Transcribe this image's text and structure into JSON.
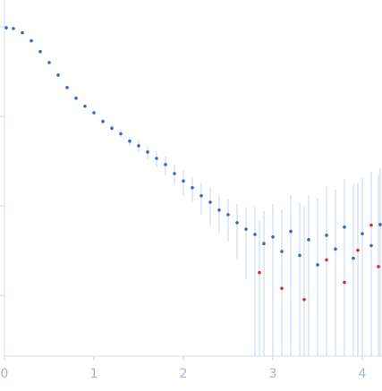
{
  "chart_data": {
    "type": "scatter",
    "log_y": true,
    "ytick_labels_shown": false,
    "error_color": "#c6d4ee",
    "xlim": [
      0,
      4.22
    ],
    "ylim": [
      0.00021,
      2
    ],
    "xticks": [
      0,
      1,
      2,
      3,
      4
    ],
    "yticks": [
      0.001,
      0.01,
      0.1,
      1
    ],
    "series": [
      {
        "color": "#3a66c4",
        "x": [
          0.02,
          0.1,
          0.2,
          0.3,
          0.4,
          0.5,
          0.6,
          0.7,
          0.8,
          0.9,
          1.0,
          1.1,
          1.2,
          1.3,
          1.4,
          1.5,
          1.6,
          1.7,
          1.8,
          1.9,
          2.0,
          2.1,
          2.2,
          2.3,
          2.4,
          2.5,
          2.6,
          2.7,
          2.8,
          2.9,
          3.0,
          3.1,
          3.2,
          3.3,
          3.4,
          3.5,
          3.6,
          3.7,
          3.8,
          3.9,
          4.0,
          4.1,
          4.2
        ],
        "values": [
          0.98,
          0.96,
          0.86,
          0.7,
          0.53,
          0.4,
          0.29,
          0.21,
          0.16,
          0.13,
          0.11,
          0.088,
          0.074,
          0.064,
          0.053,
          0.047,
          0.04,
          0.034,
          0.029,
          0.023,
          0.019,
          0.016,
          0.013,
          0.011,
          0.009,
          0.008,
          0.0065,
          0.0055,
          0.0048,
          0.0038,
          0.0045,
          0.0031,
          0.0052,
          0.0028,
          0.0042,
          0.0022,
          0.0047,
          0.0033,
          0.0058,
          0.0026,
          0.0049,
          0.0036,
          0.0062
        ],
        "errors": [
          0.05,
          0.03,
          0.02,
          0.015,
          0.01,
          0.008,
          0.006,
          0.005,
          0.005,
          0.005,
          0.006,
          0.006,
          0.006,
          0.006,
          0.006,
          0.007,
          0.007,
          0.007,
          0.007,
          0.006,
          0.006,
          0.005,
          0.005,
          0.005,
          0.004,
          0.004,
          0.004,
          0.004,
          0.005,
          0.005,
          0.006,
          0.006,
          0.008,
          0.008,
          0.009,
          0.01,
          0.012,
          0.012,
          0.014,
          0.015,
          0.016,
          0.018,
          0.02
        ]
      },
      {
        "color": "#e0282a",
        "x": [
          2.85,
          3.1,
          3.35,
          3.6,
          3.8,
          3.95,
          4.1,
          4.18
        ],
        "values": [
          0.0018,
          0.0012,
          0.0009,
          0.0025,
          0.0014,
          0.0032,
          0.0061,
          0.0021
        ],
        "errors": [
          0.005,
          0.006,
          0.009,
          0.012,
          0.014,
          0.015,
          0.018,
          0.02
        ]
      }
    ]
  }
}
